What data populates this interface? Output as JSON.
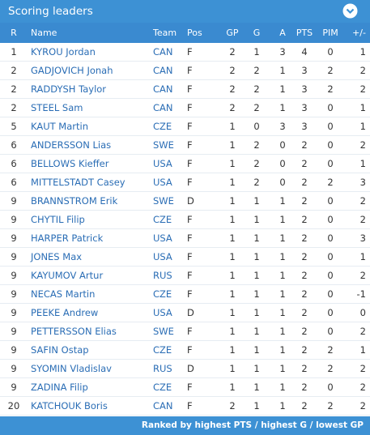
{
  "header": {
    "title": "Scoring leaders"
  },
  "table": {
    "columns": [
      "R",
      "Name",
      "Team",
      "Pos",
      "GP",
      "G",
      "A",
      "PTS",
      "PIM",
      "+/-"
    ],
    "rows": [
      [
        1,
        "KYROU Jordan",
        "CAN",
        "F",
        2,
        1,
        3,
        4,
        0,
        1
      ],
      [
        2,
        "GADJOVICH Jonah",
        "CAN",
        "F",
        2,
        2,
        1,
        3,
        2,
        2
      ],
      [
        2,
        "RADDYSH Taylor",
        "CAN",
        "F",
        2,
        2,
        1,
        3,
        2,
        2
      ],
      [
        2,
        "STEEL Sam",
        "CAN",
        "F",
        2,
        2,
        1,
        3,
        0,
        1
      ],
      [
        5,
        "KAUT Martin",
        "CZE",
        "F",
        1,
        0,
        3,
        3,
        0,
        1
      ],
      [
        6,
        "ANDERSSON Lias",
        "SWE",
        "F",
        1,
        2,
        0,
        2,
        0,
        2
      ],
      [
        6,
        "BELLOWS Kieffer",
        "USA",
        "F",
        1,
        2,
        0,
        2,
        0,
        1
      ],
      [
        6,
        "MITTELSTADT Casey",
        "USA",
        "F",
        1,
        2,
        0,
        2,
        2,
        3
      ],
      [
        9,
        "BRANNSTROM Erik",
        "SWE",
        "D",
        1,
        1,
        1,
        2,
        0,
        2
      ],
      [
        9,
        "CHYTIL Filip",
        "CZE",
        "F",
        1,
        1,
        1,
        2,
        0,
        2
      ],
      [
        9,
        "HARPER Patrick",
        "USA",
        "F",
        1,
        1,
        1,
        2,
        0,
        3
      ],
      [
        9,
        "JONES Max",
        "USA",
        "F",
        1,
        1,
        1,
        2,
        0,
        1
      ],
      [
        9,
        "KAYUMOV Artur",
        "RUS",
        "F",
        1,
        1,
        1,
        2,
        0,
        2
      ],
      [
        9,
        "NECAS Martin",
        "CZE",
        "F",
        1,
        1,
        1,
        2,
        0,
        -1
      ],
      [
        9,
        "PEEKE Andrew",
        "USA",
        "D",
        1,
        1,
        1,
        2,
        0,
        0
      ],
      [
        9,
        "PETTERSSON Elias",
        "SWE",
        "F",
        1,
        1,
        1,
        2,
        0,
        2
      ],
      [
        9,
        "SAFIN Ostap",
        "CZE",
        "F",
        1,
        1,
        1,
        2,
        2,
        1
      ],
      [
        9,
        "SYOMIN Vladislav",
        "RUS",
        "D",
        1,
        1,
        1,
        2,
        2,
        2
      ],
      [
        9,
        "ZADINA Filip",
        "CZE",
        "F",
        1,
        1,
        1,
        2,
        0,
        2
      ],
      [
        20,
        "KATCHOUK Boris",
        "CAN",
        "F",
        2,
        1,
        1,
        2,
        2,
        2
      ]
    ]
  },
  "footer": {
    "note": "Ranked by highest PTS / highest G / lowest GP"
  }
}
